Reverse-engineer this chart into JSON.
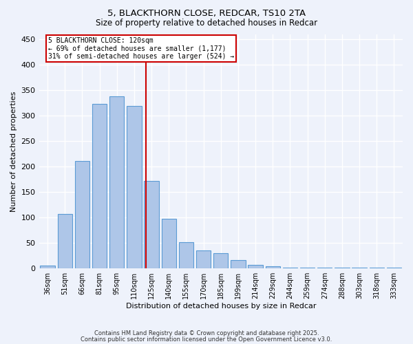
{
  "title1": "5, BLACKTHORN CLOSE, REDCAR, TS10 2TA",
  "title2": "Size of property relative to detached houses in Redcar",
  "xlabel": "Distribution of detached houses by size in Redcar",
  "ylabel": "Number of detached properties",
  "categories": [
    "36sqm",
    "51sqm",
    "66sqm",
    "81sqm",
    "95sqm",
    "110sqm",
    "125sqm",
    "140sqm",
    "155sqm",
    "170sqm",
    "185sqm",
    "199sqm",
    "214sqm",
    "229sqm",
    "244sqm",
    "259sqm",
    "274sqm",
    "288sqm",
    "303sqm",
    "318sqm",
    "333sqm"
  ],
  "values": [
    6,
    107,
    211,
    323,
    338,
    320,
    172,
    98,
    51,
    35,
    30,
    17,
    7,
    5,
    2,
    1,
    1,
    1,
    1,
    1,
    2
  ],
  "bar_color": "#aec6e8",
  "bar_edgecolor": "#5b9bd5",
  "annotation_line1": "5 BLACKTHORN CLOSE: 120sqm",
  "annotation_line2": "← 69% of detached houses are smaller (1,177)",
  "annotation_line3": "31% of semi-detached houses are larger (524) →",
  "annotation_box_color": "#ffffff",
  "annotation_box_edgecolor": "#cc0000",
  "ylim": [
    0,
    460
  ],
  "yticks": [
    0,
    50,
    100,
    150,
    200,
    250,
    300,
    350,
    400,
    450
  ],
  "background_color": "#eef2fb",
  "grid_color": "#ffffff",
  "footer1": "Contains HM Land Registry data © Crown copyright and database right 2025.",
  "footer2": "Contains public sector information licensed under the Open Government Licence v3.0."
}
